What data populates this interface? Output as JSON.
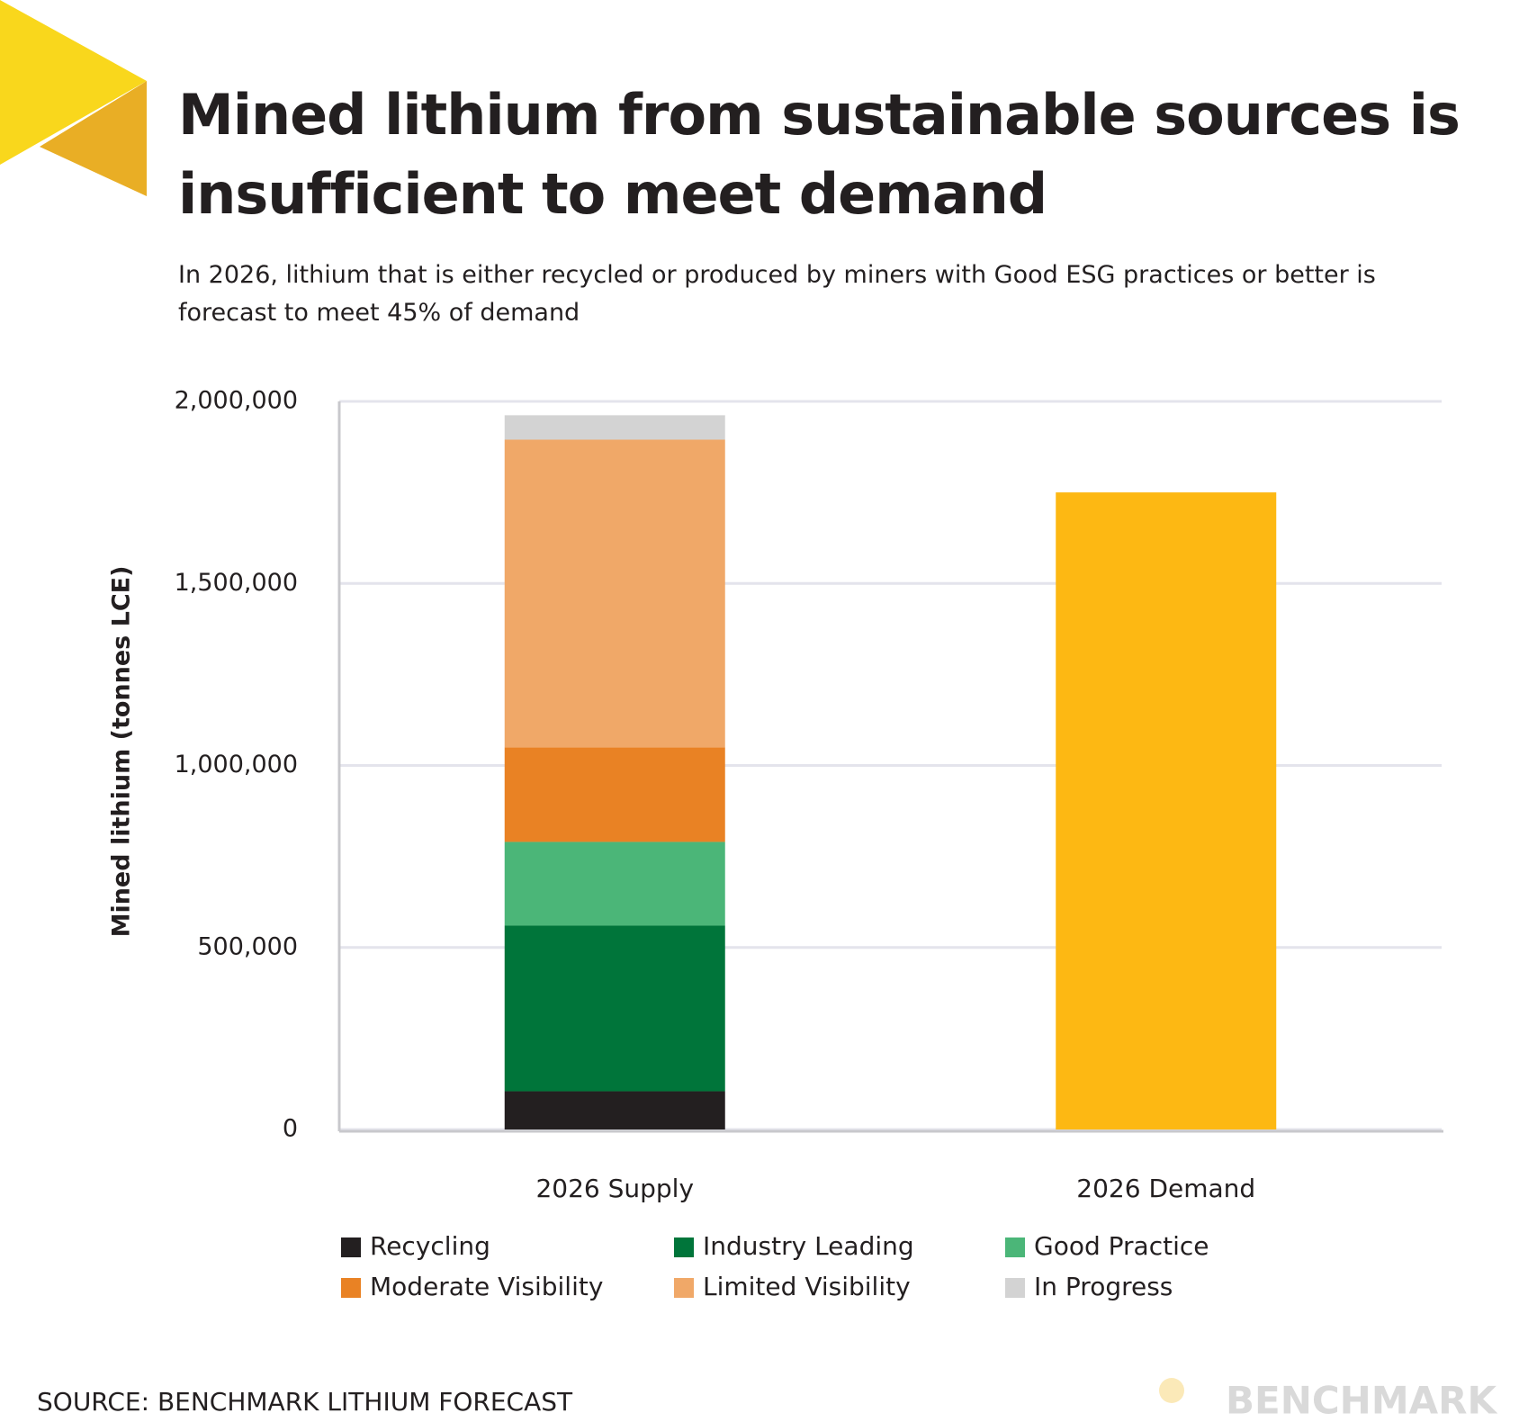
{
  "chart_data": {
    "type": "stacked_bar",
    "title": "Mined lithium from sustainable sources is insufficient to meet demand",
    "subtitle": "In 2026, lithium that is either recycled or produced by miners with Good ESG practices or better is forecast to meet 45% of demand",
    "y_label": "Mined lithium (tonnes LCE)",
    "categories": [
      "2026 Supply",
      "2026 Demand"
    ],
    "series": [
      {
        "name": "Recycling",
        "color": "#231f20",
        "values": [
          105000,
          null
        ]
      },
      {
        "name": "Industry Leading",
        "color": "#00753a",
        "values": [
          455000,
          null
        ]
      },
      {
        "name": "Good Practice",
        "color": "#4bb678",
        "values": [
          230000,
          null
        ]
      },
      {
        "name": "Moderate Visibility",
        "color": "#e98224",
        "values": [
          260000,
          null
        ]
      },
      {
        "name": "Limited Visibility",
        "color": "#f0a868",
        "values": [
          845000,
          null
        ]
      },
      {
        "name": "In Progress",
        "color": "#d3d3d3",
        "values": [
          67000,
          null
        ]
      },
      {
        "color": "#fdb813",
        "values": [
          null,
          1750000
        ]
      }
    ],
    "ylim": [
      0,
      2000000
    ],
    "yticks": [
      0,
      {
        "value": 500000,
        "label": "500,000"
      },
      {
        "value": 1000000,
        "label": "1,000,000"
      },
      {
        "value": 1500000,
        "label": "1,500,000"
      },
      {
        "value": 2000000,
        "label": "2,000,000"
      }
    ],
    "grid": true,
    "legend": "bottom",
    "source": "SOURCE: BENCHMARK LITHIUM FORECAST",
    "logo_text": "BENCHMARK"
  }
}
